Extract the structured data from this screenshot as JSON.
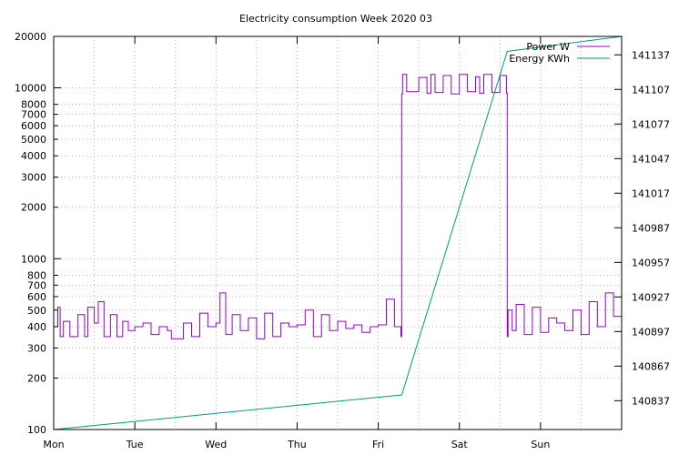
{
  "chart_data": {
    "type": "line",
    "title": "Electricity consumption Week 2020 03",
    "x_ticks": [
      "Mon",
      "Tue",
      "Wed",
      "Thu",
      "Fri",
      "Sat",
      "Sun"
    ],
    "y_left": {
      "scale": "log",
      "range": [
        100,
        20000
      ],
      "ticks": [
        100,
        200,
        300,
        400,
        500,
        600,
        700,
        800,
        1000,
        2000,
        3000,
        4000,
        5000,
        6000,
        7000,
        8000,
        10000,
        20000
      ]
    },
    "y_right": {
      "scale": "linear",
      "range": [
        140812,
        141153
      ],
      "ticks": [
        140837,
        140867,
        140897,
        140927,
        140957,
        140987,
        141017,
        141047,
        141077,
        141107,
        141137
      ]
    },
    "grid": true,
    "legend_position": "top-right",
    "series": [
      {
        "name": "Power W",
        "axis": "left",
        "color": "#9400d3",
        "x_days": [
          0,
          0.05,
          0.08,
          0.12,
          0.2,
          0.3,
          0.38,
          0.42,
          0.5,
          0.55,
          0.62,
          0.7,
          0.78,
          0.85,
          0.92,
          1.0,
          1.1,
          1.2,
          1.3,
          1.4,
          1.45,
          1.6,
          1.7,
          1.8,
          1.9,
          2.0,
          2.05,
          2.12,
          2.2,
          2.3,
          2.4,
          2.5,
          2.6,
          2.7,
          2.8,
          2.9,
          3.0,
          3.1,
          3.2,
          3.3,
          3.4,
          3.5,
          3.6,
          3.7,
          3.8,
          3.9,
          4.0,
          4.1,
          4.2,
          4.28,
          4.29,
          4.3,
          4.35,
          4.5,
          4.6,
          4.65,
          4.7,
          4.8,
          4.9,
          5.0,
          5.1,
          5.2,
          5.25,
          5.3,
          5.4,
          5.5,
          5.58,
          5.59,
          5.6,
          5.65,
          5.7,
          5.8,
          5.9,
          6.0,
          6.1,
          6.2,
          6.3,
          6.4,
          6.5,
          6.6,
          6.7,
          6.8,
          6.9,
          7.0
        ],
        "y_watts": [
          400,
          520,
          350,
          430,
          350,
          470,
          350,
          520,
          420,
          560,
          350,
          470,
          350,
          430,
          380,
          400,
          420,
          360,
          400,
          380,
          340,
          420,
          350,
          480,
          400,
          420,
          630,
          360,
          470,
          380,
          450,
          340,
          480,
          350,
          420,
          400,
          410,
          500,
          350,
          470,
          380,
          430,
          390,
          410,
          370,
          400,
          410,
          580,
          400,
          350,
          9200,
          12000,
          9500,
          11500,
          9300,
          12000,
          9400,
          11800,
          9200,
          12000,
          9500,
          11600,
          9300,
          12000,
          9400,
          11800,
          9300,
          350,
          500,
          380,
          540,
          360,
          520,
          370,
          450,
          420,
          380,
          500,
          360,
          560,
          400,
          630,
          460,
          420
        ]
      },
      {
        "name": "Energy KWh",
        "axis": "right",
        "color": "#009e73",
        "x_days": [
          0,
          4.29,
          5.59,
          7.0
        ],
        "y_kwh": [
          140812,
          140842,
          141140,
          141153
        ]
      }
    ]
  }
}
